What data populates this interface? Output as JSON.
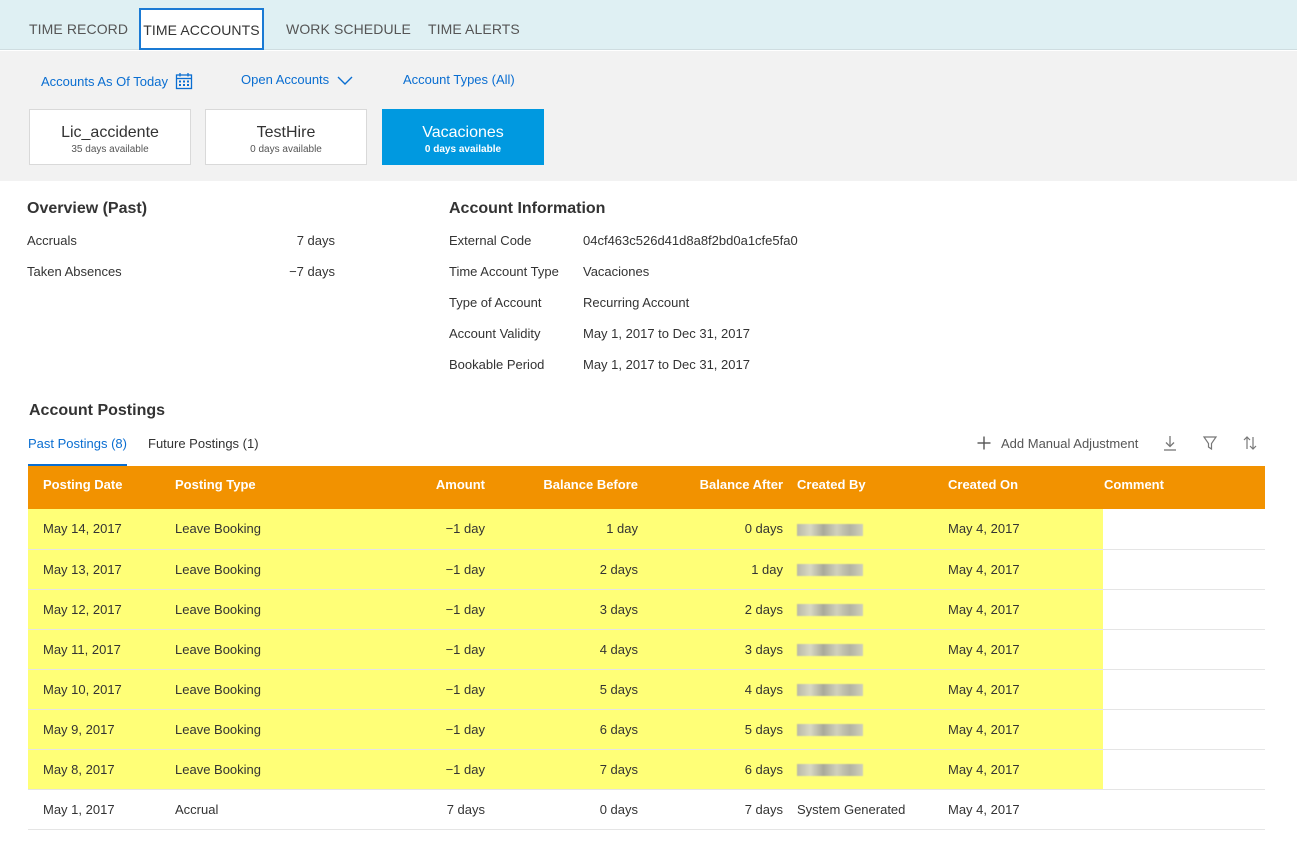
{
  "tabs": [
    {
      "label": "TIME RECORD"
    },
    {
      "label": "TIME ACCOUNTS"
    },
    {
      "label": "WORK SCHEDULE"
    },
    {
      "label": "TIME ALERTS"
    }
  ],
  "filters": {
    "as_of": "Accounts As Of Today",
    "open": "Open Accounts",
    "types": "Account Types (All)"
  },
  "accounts": [
    {
      "name": "Lic_accidente",
      "available": "35 days available"
    },
    {
      "name": "TestHire",
      "available": "0 days available"
    },
    {
      "name": "Vacaciones",
      "available": "0 days available"
    }
  ],
  "overview": {
    "title": "Overview (Past)",
    "rows": [
      {
        "label": "Accruals",
        "value": "7 days"
      },
      {
        "label": "Taken Absences",
        "value": "−7 days"
      }
    ]
  },
  "account_info": {
    "title": "Account Information",
    "rows": [
      {
        "label": "External Code",
        "value": "04cf463c526d41d8a8f2bd0a1cfe5fa0"
      },
      {
        "label": "Time Account Type",
        "value": "Vacaciones"
      },
      {
        "label": "Type of Account",
        "value": "Recurring Account"
      },
      {
        "label": "Account Validity",
        "value": "May 1, 2017 to Dec 31, 2017"
      },
      {
        "label": "Bookable Period",
        "value": "May 1, 2017 to Dec 31, 2017"
      }
    ]
  },
  "postings": {
    "title": "Account Postings",
    "tabs": [
      {
        "label": "Past Postings (8)"
      },
      {
        "label": "Future Postings (1)"
      }
    ],
    "add_label": "Add Manual Adjustment",
    "columns": [
      "Posting Date",
      "Posting Type",
      "Amount",
      "Balance Before",
      "Balance After",
      "Created By",
      "Created On",
      "Comment"
    ],
    "rows": [
      {
        "date": "May 14, 2017",
        "type": "Leave Booking",
        "amount": "−1 day",
        "before": "1 day",
        "after": "0 days",
        "created_by": "",
        "created_on": "May 4, 2017",
        "comment": ""
      },
      {
        "date": "May 13, 2017",
        "type": "Leave Booking",
        "amount": "−1 day",
        "before": "2 days",
        "after": "1 day",
        "created_by": "",
        "created_on": "May 4, 2017",
        "comment": ""
      },
      {
        "date": "May 12, 2017",
        "type": "Leave Booking",
        "amount": "−1 day",
        "before": "3 days",
        "after": "2 days",
        "created_by": "",
        "created_on": "May 4, 2017",
        "comment": ""
      },
      {
        "date": "May 11, 2017",
        "type": "Leave Booking",
        "amount": "−1 day",
        "before": "4 days",
        "after": "3 days",
        "created_by": "",
        "created_on": "May 4, 2017",
        "comment": ""
      },
      {
        "date": "May 10, 2017",
        "type": "Leave Booking",
        "amount": "−1 day",
        "before": "5 days",
        "after": "4 days",
        "created_by": "",
        "created_on": "May 4, 2017",
        "comment": ""
      },
      {
        "date": "May 9, 2017",
        "type": "Leave Booking",
        "amount": "−1 day",
        "before": "6 days",
        "after": "5 days",
        "created_by": "",
        "created_on": "May 4, 2017",
        "comment": ""
      },
      {
        "date": "May 8, 2017",
        "type": "Leave Booking",
        "amount": "−1 day",
        "before": "7 days",
        "after": "6 days",
        "created_by": "",
        "created_on": "May 4, 2017",
        "comment": ""
      },
      {
        "date": "May 1, 2017",
        "type": "Accrual",
        "amount": "7 days",
        "before": "0 days",
        "after": "7 days",
        "created_by": "System Generated",
        "created_on": "May 4, 2017",
        "comment": ""
      }
    ]
  },
  "colors": {
    "accent": "#0a6ed1",
    "header_orange": "#f29200",
    "selected_card": "#0099e0",
    "highlight": "#ffff77"
  },
  "icons": [
    "calendar-icon",
    "chevron-down-icon",
    "plus-icon",
    "download-icon",
    "filter-icon",
    "sort-icon"
  ]
}
